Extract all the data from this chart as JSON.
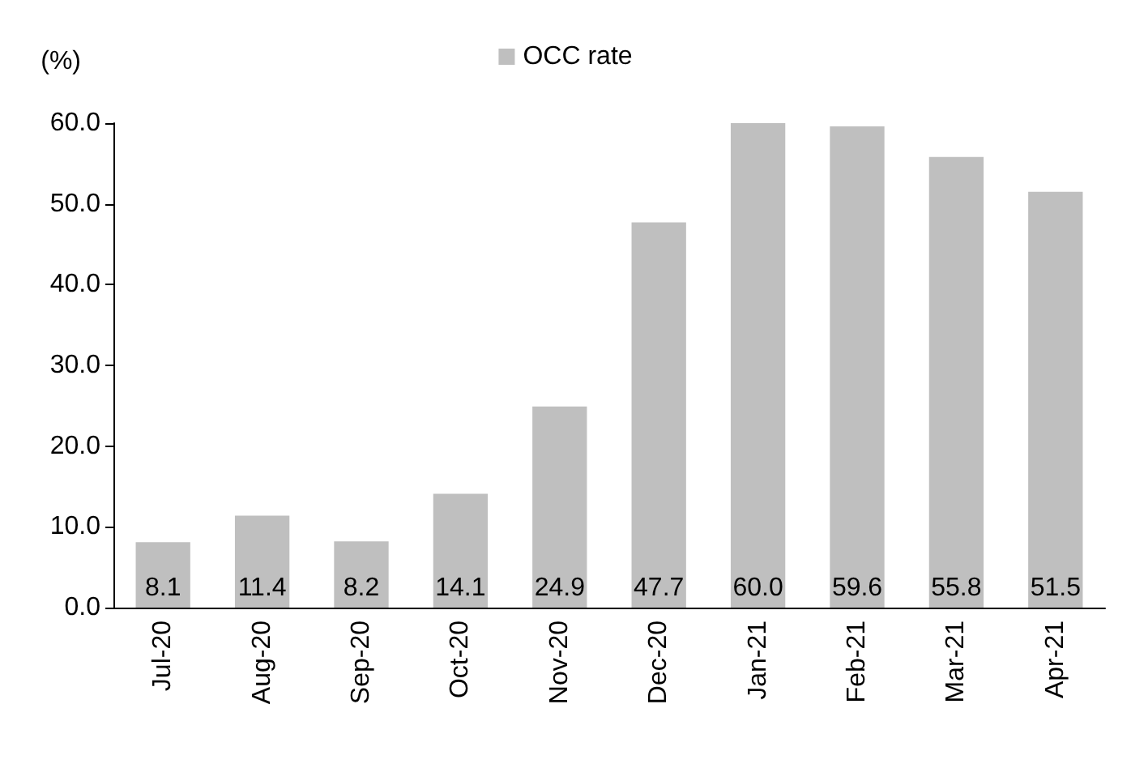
{
  "chart_data": {
    "type": "bar",
    "ylabel": "(%)",
    "categories": [
      "Jul-20",
      "Aug-20",
      "Sep-20",
      "Oct-20",
      "Nov-20",
      "Dec-20",
      "Jan-21",
      "Feb-21",
      "Mar-21",
      "Apr-21"
    ],
    "series": [
      {
        "name": "OCC rate",
        "color": "#bfbfbf",
        "values": [
          8.1,
          11.4,
          8.2,
          14.1,
          24.9,
          47.7,
          60.0,
          59.6,
          55.8,
          51.5
        ],
        "value_labels": [
          "8.1",
          "11.4",
          "8.2",
          "14.1",
          "24.9",
          "47.7",
          "60.0",
          "59.6",
          "55.8",
          "51.5"
        ]
      }
    ],
    "ylim": [
      0,
      60
    ],
    "yticks": [
      {
        "value": 0,
        "label": "0.0"
      },
      {
        "value": 10,
        "label": "10.0"
      },
      {
        "value": 20,
        "label": "20.0"
      },
      {
        "value": 30,
        "label": "30.0"
      },
      {
        "value": 40,
        "label": "40.0"
      },
      {
        "value": 50,
        "label": "50.0"
      },
      {
        "value": 60,
        "label": "60.0"
      }
    ],
    "grid": false,
    "legend": "top"
  }
}
